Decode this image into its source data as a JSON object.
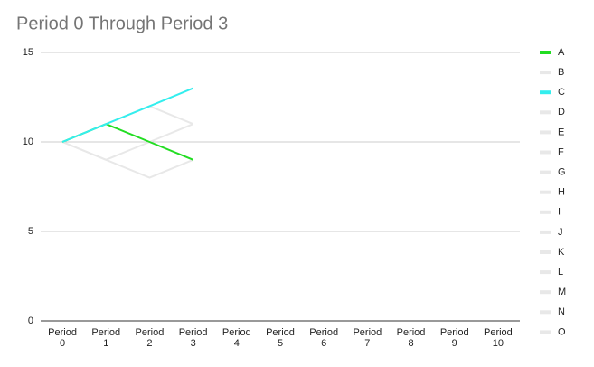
{
  "chart_data": {
    "type": "line",
    "title": "Period 0 Through Period 3",
    "categories": [
      "Period 0",
      "Period 1",
      "Period 2",
      "Period 3",
      "Period 4",
      "Period 5",
      "Period 6",
      "Period 7",
      "Period 8",
      "Period 9",
      "Period 10"
    ],
    "ylim": [
      0,
      15
    ],
    "yticks": [
      0,
      5,
      10,
      15
    ],
    "grid": true,
    "legend": "right",
    "series": [
      {
        "name": "A",
        "color": "#22dd22",
        "values": [
          10,
          11,
          10,
          9,
          null,
          null,
          null,
          null,
          null,
          null,
          null
        ]
      },
      {
        "name": "B",
        "color": "#e8e8e8",
        "values": [
          10,
          9,
          8,
          9,
          null,
          null,
          null,
          null,
          null,
          null,
          null
        ]
      },
      {
        "name": "C",
        "color": "#33eeee",
        "values": [
          10,
          11,
          12,
          13,
          null,
          null,
          null,
          null,
          null,
          null,
          null
        ]
      },
      {
        "name": "D",
        "color": "#e8e8e8",
        "values": [
          10,
          9,
          10,
          11,
          null,
          null,
          null,
          null,
          null,
          null,
          null
        ]
      },
      {
        "name": "E",
        "color": "#e8e8e8",
        "values": [
          10,
          11,
          12,
          11,
          null,
          null,
          null,
          null,
          null,
          null,
          null
        ]
      },
      {
        "name": "F",
        "color": "#e8e8e8",
        "values": [
          null,
          null,
          null,
          null,
          null,
          null,
          null,
          null,
          null,
          null,
          null
        ]
      },
      {
        "name": "G",
        "color": "#e8e8e8",
        "values": [
          null,
          null,
          null,
          null,
          null,
          null,
          null,
          null,
          null,
          null,
          null
        ]
      },
      {
        "name": "H",
        "color": "#e8e8e8",
        "values": [
          null,
          null,
          null,
          null,
          null,
          null,
          null,
          null,
          null,
          null,
          null
        ]
      },
      {
        "name": "I",
        "color": "#e8e8e8",
        "values": [
          null,
          null,
          null,
          null,
          null,
          null,
          null,
          null,
          null,
          null,
          null
        ]
      },
      {
        "name": "J",
        "color": "#e8e8e8",
        "values": [
          null,
          null,
          null,
          null,
          null,
          null,
          null,
          null,
          null,
          null,
          null
        ]
      },
      {
        "name": "K",
        "color": "#e8e8e8",
        "values": [
          null,
          null,
          null,
          null,
          null,
          null,
          null,
          null,
          null,
          null,
          null
        ]
      },
      {
        "name": "L",
        "color": "#e8e8e8",
        "values": [
          null,
          null,
          null,
          null,
          null,
          null,
          null,
          null,
          null,
          null,
          null
        ]
      },
      {
        "name": "M",
        "color": "#e8e8e8",
        "values": [
          null,
          null,
          null,
          null,
          null,
          null,
          null,
          null,
          null,
          null,
          null
        ]
      },
      {
        "name": "N",
        "color": "#e8e8e8",
        "values": [
          null,
          null,
          null,
          null,
          null,
          null,
          null,
          null,
          null,
          null,
          null
        ]
      },
      {
        "name": "O",
        "color": "#e8e8e8",
        "values": [
          null,
          null,
          null,
          null,
          null,
          null,
          null,
          null,
          null,
          null,
          null
        ]
      }
    ]
  }
}
